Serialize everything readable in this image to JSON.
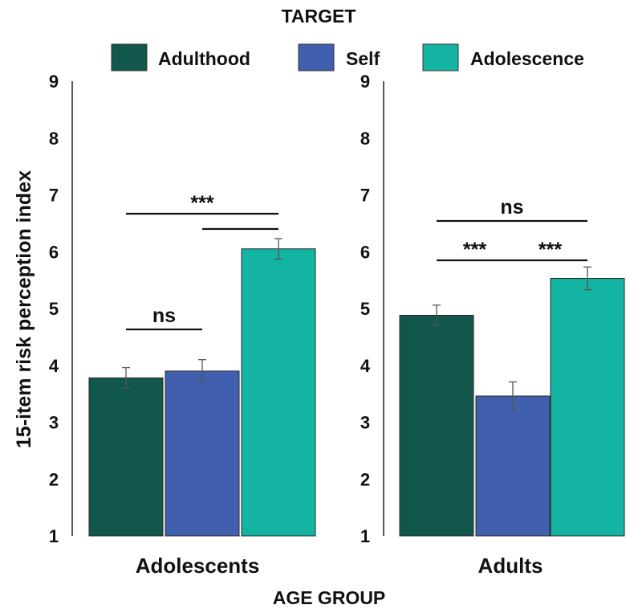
{
  "chart_data": {
    "type": "bar",
    "legend_title": "TARGET",
    "legend_position": "top",
    "series": [
      {
        "name": "Adulthood",
        "color": "#12574b"
      },
      {
        "name": "Self",
        "color": "#405fae"
      },
      {
        "name": "Adolescence",
        "color": "#13b4a1"
      }
    ],
    "panels": [
      {
        "category": "Adolescents",
        "values": [
          3.78,
          3.9,
          6.05
        ],
        "errors": [
          0.18,
          0.2,
          0.18
        ],
        "comparisons": [
          {
            "label": "ns",
            "from": 0,
            "to": 1
          },
          {
            "label": "***",
            "from": 0,
            "to": 2
          },
          {
            "label": "",
            "from": 1,
            "to": 2
          }
        ]
      },
      {
        "category": "Adults",
        "values": [
          4.88,
          3.46,
          5.53
        ],
        "errors": [
          0.18,
          0.25,
          0.2
        ],
        "comparisons": [
          {
            "label": "***",
            "from": 0,
            "to": 1
          },
          {
            "label": "***",
            "from": 1,
            "to": 2
          },
          {
            "label": "ns",
            "from": 0,
            "to": 2
          }
        ]
      }
    ],
    "ylabel": "15-item risk perception index",
    "xlabel": "AGE GROUP",
    "ylim": [
      1,
      9
    ],
    "yticks": [
      "1",
      "2",
      "3",
      "4",
      "5",
      "6",
      "7",
      "8",
      "9"
    ],
    "grid": false
  }
}
